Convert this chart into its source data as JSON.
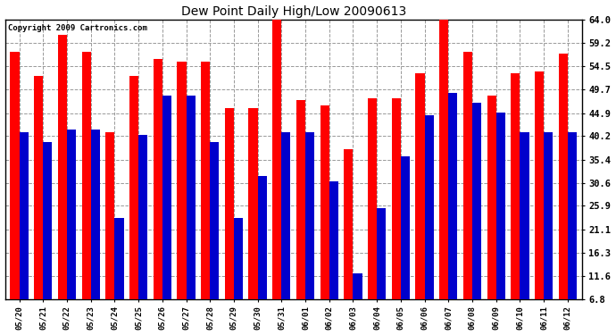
{
  "title": "Dew Point Daily High/Low 20090613",
  "copyright": "Copyright 2009 Cartronics.com",
  "dates": [
    "05/20",
    "05/21",
    "05/22",
    "05/23",
    "05/24",
    "05/25",
    "05/26",
    "05/27",
    "05/28",
    "05/29",
    "05/30",
    "05/31",
    "06/01",
    "06/02",
    "06/03",
    "06/04",
    "06/05",
    "06/06",
    "06/07",
    "06/08",
    "06/09",
    "06/10",
    "06/11",
    "06/12"
  ],
  "highs": [
    57.5,
    52.5,
    61.0,
    57.5,
    41.0,
    52.5,
    56.0,
    55.5,
    55.5,
    46.0,
    46.0,
    64.5,
    47.5,
    46.5,
    37.5,
    48.0,
    48.0,
    53.0,
    64.0,
    57.5,
    48.5,
    53.0,
    53.5,
    57.0
  ],
  "lows": [
    41.0,
    39.0,
    41.5,
    41.5,
    23.5,
    40.5,
    48.5,
    48.5,
    39.0,
    23.5,
    32.0,
    41.0,
    41.0,
    31.0,
    12.0,
    25.5,
    36.0,
    44.5,
    49.0,
    47.0,
    45.0,
    41.0,
    41.0,
    41.0
  ],
  "high_color": "#ff0000",
  "low_color": "#0000cc",
  "background_color": "#ffffff",
  "plot_bg_color": "#ffffff",
  "grid_color": "#999999",
  "ylim_min": 6.8,
  "ylim_max": 64.0,
  "yticks": [
    6.8,
    11.6,
    16.3,
    21.1,
    25.9,
    30.6,
    35.4,
    40.2,
    44.9,
    49.7,
    54.5,
    59.2,
    64.0
  ],
  "bar_width": 0.38,
  "figwidth": 6.9,
  "figheight": 3.75,
  "dpi": 100
}
